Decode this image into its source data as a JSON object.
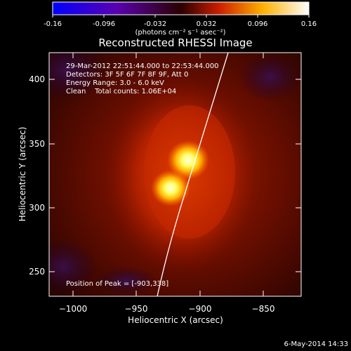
{
  "colorbar": {
    "ticks": [
      "-0.16",
      "-0.096",
      "-0.032",
      "0.032",
      "0.096",
      "0.16"
    ],
    "unit_label": "(photons cm⁻² s⁻¹ asec⁻²)"
  },
  "plot": {
    "title": "Reconstructed RHESSI Image",
    "xlabel": "Heliocentric X (arcsec)",
    "ylabel": "Heliocentric Y (arcsec)",
    "x_ticks": [
      "−1000",
      "−950",
      "−900",
      "−850"
    ],
    "y_ticks": [
      "400",
      "350",
      "300",
      "250"
    ],
    "info_lines": [
      "29-Mar-2012 22:51:44.000 to 22:53:44.000",
      "Detectors: 3F 5F 6F 7F 8F 9F, Att 0",
      "Energy Range: 3.0 - 6.0 keV",
      "Clean    Total counts: 1.06E+04"
    ],
    "peak_label": "Position of Peak = [-903,338]"
  },
  "footer": {
    "timestamp": "6-May-2014 14:33"
  },
  "colors": {
    "background": "#000000",
    "limb_line": "#ffffff",
    "text": "#ffffff"
  }
}
